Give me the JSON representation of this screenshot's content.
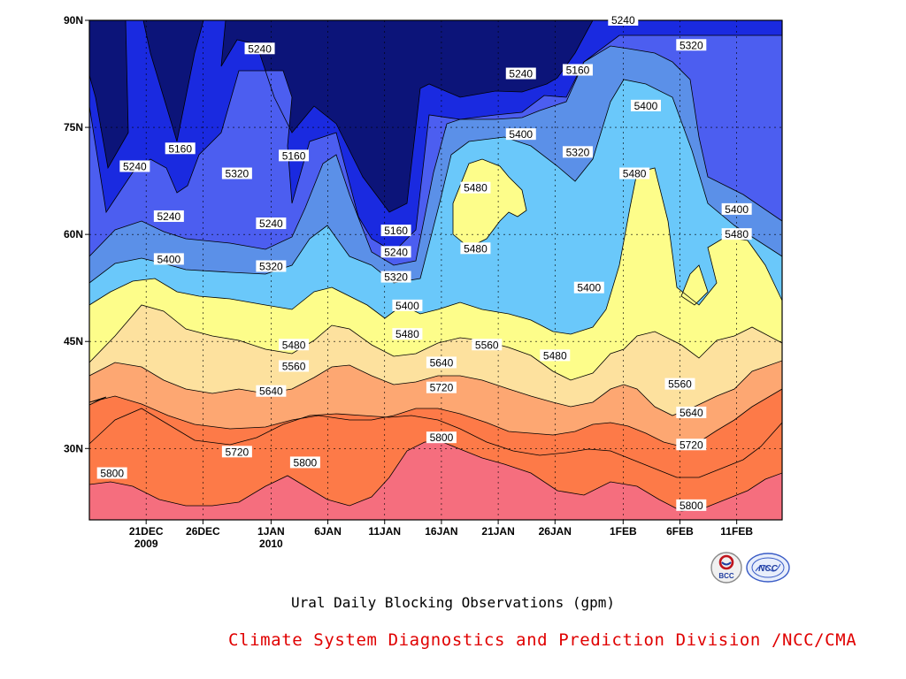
{
  "chart_data": {
    "type": "heatmap",
    "title": "Ural Daily Blocking Observations (gpm)",
    "credit": "Climate System Diagnostics and Prediction Division /NCC/CMA",
    "logos": [
      {
        "name": "bcc-logo",
        "text": "BCC"
      },
      {
        "name": "ncc-logo",
        "text": "NCC"
      }
    ],
    "x_ticks": [
      {
        "date": "2009-12-21",
        "label": "21DEC",
        "sublabel": "2009"
      },
      {
        "date": "2009-12-26",
        "label": "26DEC",
        "sublabel": ""
      },
      {
        "date": "2010-01-01",
        "label": "1JAN",
        "sublabel": "2010"
      },
      {
        "date": "2010-01-06",
        "label": "6JAN",
        "sublabel": ""
      },
      {
        "date": "2010-01-11",
        "label": "11JAN",
        "sublabel": ""
      },
      {
        "date": "2010-01-16",
        "label": "16JAN",
        "sublabel": ""
      },
      {
        "date": "2010-01-21",
        "label": "21JAN",
        "sublabel": ""
      },
      {
        "date": "2010-01-26",
        "label": "26JAN",
        "sublabel": ""
      },
      {
        "date": "2010-02-01",
        "label": "1FEB",
        "sublabel": ""
      },
      {
        "date": "2010-02-06",
        "label": "6FEB",
        "sublabel": ""
      },
      {
        "date": "2010-02-11",
        "label": "11FEB",
        "sublabel": ""
      }
    ],
    "xlim": [
      "2009-12-16",
      "2010-02-15"
    ],
    "y_ticks": [
      {
        "value": 30,
        "label": "30N"
      },
      {
        "value": 45,
        "label": "45N"
      },
      {
        "value": 60,
        "label": "60N"
      },
      {
        "value": 75,
        "label": "75N"
      },
      {
        "value": 90,
        "label": "90N"
      }
    ],
    "ylim": [
      20,
      90
    ],
    "grid": true,
    "levels": [
      5160,
      5240,
      5320,
      5400,
      5480,
      5560,
      5640,
      5720,
      5800
    ],
    "fill_colors": {
      "below_5160": "#0c1479",
      "5160_5240": "#1a2ae0",
      "5240_5320": "#4c5ef0",
      "5320_5400": "#5b90e8",
      "5400_5480": "#6ac8fa",
      "5480_5560": "#fdfd8a",
      "5560_5640": "#fde19e",
      "5640_5720": "#fda772",
      "5720_5800": "#fd7a48",
      "above_5800": "#f56e7e"
    },
    "contour_labels": [
      {
        "text": "5240",
        "date": "2010-02-01",
        "lat": 90
      },
      {
        "text": "5240",
        "date": "2009-12-20",
        "lat": 69.5
      },
      {
        "text": "5160",
        "date": "2009-12-24",
        "lat": 72
      },
      {
        "text": "5240",
        "date": "2009-12-31",
        "lat": 86
      },
      {
        "text": "5320",
        "date": "2009-12-29",
        "lat": 68.5
      },
      {
        "text": "5160",
        "date": "2010-01-03",
        "lat": 71
      },
      {
        "text": "5240",
        "date": "2009-12-23",
        "lat": 62.5
      },
      {
        "text": "5240",
        "date": "2010-01-01",
        "lat": 61.5
      },
      {
        "text": "5400",
        "date": "2009-12-23",
        "lat": 56.5
      },
      {
        "text": "5320",
        "date": "2010-01-01",
        "lat": 55.5
      },
      {
        "text": "5160",
        "date": "2010-01-12",
        "lat": 60.5
      },
      {
        "text": "5240",
        "date": "2010-01-12",
        "lat": 57.5
      },
      {
        "text": "5320",
        "date": "2010-01-12",
        "lat": 54
      },
      {
        "text": "5400",
        "date": "2010-01-13",
        "lat": 50
      },
      {
        "text": "5480",
        "date": "2010-01-13",
        "lat": 46
      },
      {
        "text": "5480",
        "date": "2010-01-03",
        "lat": 44.5
      },
      {
        "text": "5560",
        "date": "2010-01-03",
        "lat": 41.5
      },
      {
        "text": "5640",
        "date": "2010-01-01",
        "lat": 38
      },
      {
        "text": "5720",
        "date": "2009-12-29",
        "lat": 29.5
      },
      {
        "text": "5800",
        "date": "2010-01-04",
        "lat": 28
      },
      {
        "text": "5800",
        "date": "2009-12-18",
        "lat": 26.5
      },
      {
        "text": "5640",
        "date": "2010-01-16",
        "lat": 42
      },
      {
        "text": "5720",
        "date": "2010-01-16",
        "lat": 38.5
      },
      {
        "text": "5800",
        "date": "2010-01-16",
        "lat": 31.5
      },
      {
        "text": "5560",
        "date": "2010-01-20",
        "lat": 44.5
      },
      {
        "text": "5480",
        "date": "2010-01-19",
        "lat": 66.5
      },
      {
        "text": "5480",
        "date": "2010-01-19",
        "lat": 58
      },
      {
        "text": "5240",
        "date": "2010-01-23",
        "lat": 82.5
      },
      {
        "text": "5400",
        "date": "2010-01-23",
        "lat": 74
      },
      {
        "text": "5160",
        "date": "2010-01-28",
        "lat": 83
      },
      {
        "text": "5320",
        "date": "2010-01-28",
        "lat": 71.5
      },
      {
        "text": "5400",
        "date": "2010-01-29",
        "lat": 52.5
      },
      {
        "text": "5480",
        "date": "2010-01-26",
        "lat": 43
      },
      {
        "text": "5480",
        "date": "2010-02-02",
        "lat": 68.5
      },
      {
        "text": "5400",
        "date": "2010-02-03",
        "lat": 78
      },
      {
        "text": "5320",
        "date": "2010-02-07",
        "lat": 86.5
      },
      {
        "text": "5400",
        "date": "2010-02-11",
        "lat": 63.5
      },
      {
        "text": "5480",
        "date": "2010-02-11",
        "lat": 60
      },
      {
        "text": "5560",
        "date": "2010-02-06",
        "lat": 39
      },
      {
        "text": "5640",
        "date": "2010-02-07",
        "lat": 35
      },
      {
        "text": "5720",
        "date": "2010-02-07",
        "lat": 30.5
      },
      {
        "text": "5800",
        "date": "2010-02-07",
        "lat": 22
      }
    ]
  }
}
